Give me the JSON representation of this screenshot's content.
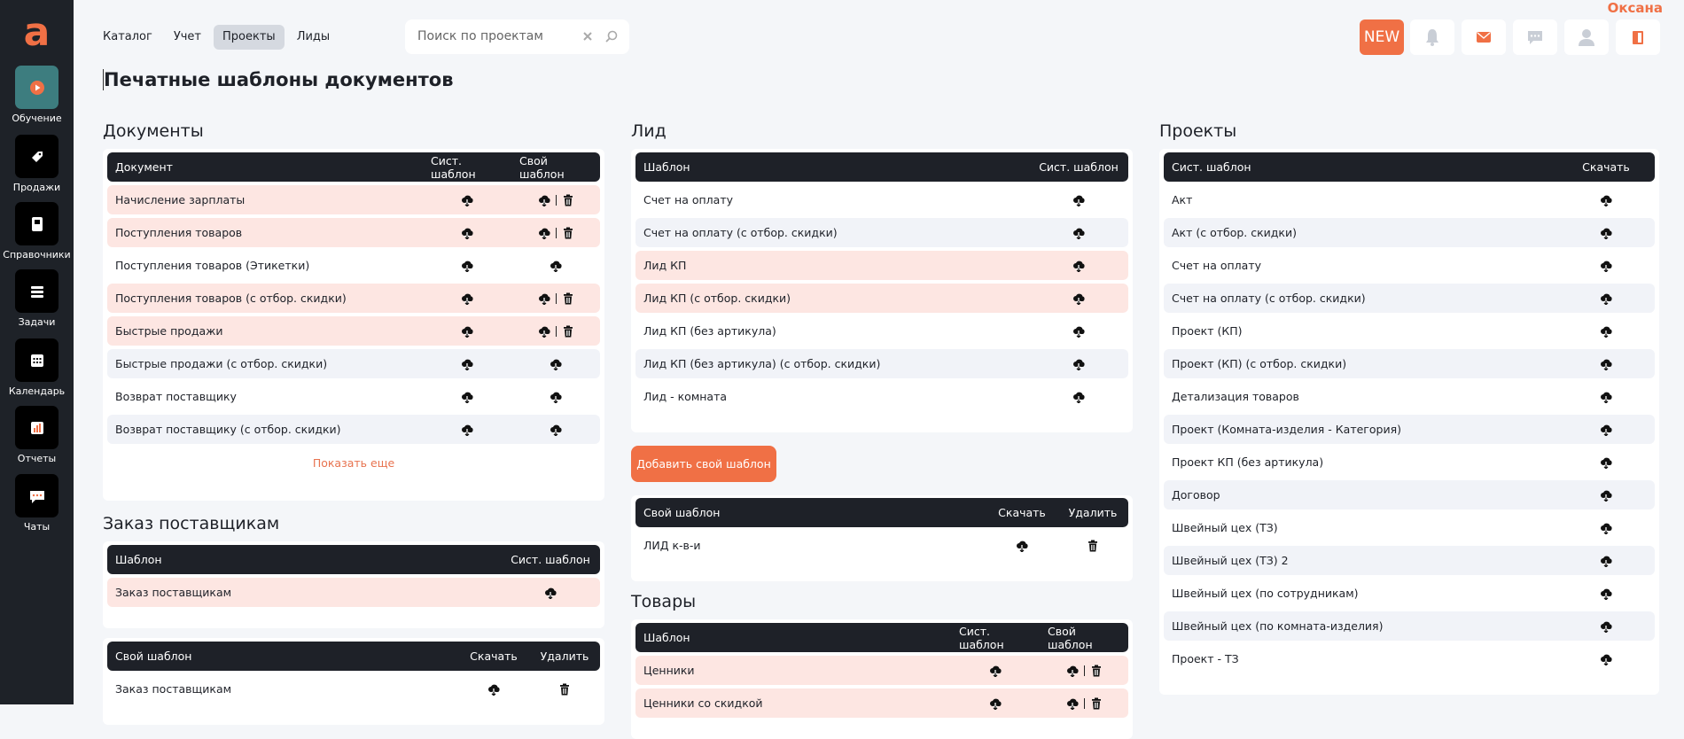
{
  "app": {
    "logo": "a",
    "user": "Оксана",
    "new_badge": "NEW",
    "nav": [
      "Каталог",
      "Учет",
      "Проекты",
      "Лиды"
    ],
    "active_nav": 2,
    "search_placeholder": "Поиск по проектам",
    "sidebar": [
      "Обучение",
      "Продажи",
      "Справочники",
      "Задачи",
      "Календарь",
      "Отчеты",
      "Чаты"
    ]
  },
  "page": {
    "title": "Печатные шаблоны документов"
  },
  "documents": {
    "title": "Документы",
    "columns": [
      "Документ",
      "Сист. шаблон",
      "Свой шаблон"
    ],
    "rows": [
      {
        "name": "Начисление зарплаты",
        "highlight": true,
        "delete": true
      },
      {
        "name": "Поступления товаров",
        "highlight": true,
        "delete": true
      },
      {
        "name": "Поступления товаров (Этикетки)",
        "highlight": false,
        "delete": false
      },
      {
        "name": "Поступления товаров (с отбор. скидки)",
        "highlight": true,
        "delete": true
      },
      {
        "name": "Быстрые продажи",
        "highlight": true,
        "delete": true
      },
      {
        "name": "Быстрые продажи (с отбор. скидки)",
        "highlight": false,
        "delete": false
      },
      {
        "name": "Возврат поставщику",
        "highlight": false,
        "delete": false
      },
      {
        "name": "Возврат поставщику (с отбор. скидки)",
        "highlight": false,
        "delete": false
      }
    ],
    "show_more": "Показать еще"
  },
  "supplier_order": {
    "title": "Заказ поставщикам",
    "columns": [
      "Шаблон",
      "Сист. шаблон"
    ],
    "rows": [
      {
        "name": "Заказ поставщикам",
        "highlight": true
      }
    ],
    "own": {
      "columns": [
        "Свой шаблон",
        "Скачать",
        "Удалить"
      ],
      "rows": [
        {
          "name": "Заказ поставщикам",
          "highlight": false
        }
      ]
    }
  },
  "lead": {
    "title": "Лид",
    "columns": [
      "Шаблон",
      "Сист. шаблон"
    ],
    "rows": [
      {
        "name": "Счет на оплату",
        "highlight": false
      },
      {
        "name": "Счет на оплату (с отбор. скидки)",
        "highlight": false
      },
      {
        "name": "Лид КП",
        "highlight": true
      },
      {
        "name": "Лид КП (с отбор. скидки)",
        "highlight": true
      },
      {
        "name": "Лид КП (без артикула)",
        "highlight": false
      },
      {
        "name": "Лид КП (без артикула) (с отбор. скидки)",
        "highlight": false
      },
      {
        "name": "Лид - комната",
        "highlight": false
      }
    ],
    "add_button": "Добавить свой шаблон",
    "own": {
      "columns": [
        "Свой шаблон",
        "Скачать",
        "Удалить"
      ],
      "rows": [
        {
          "name": "ЛИД к-в-и",
          "highlight": false
        }
      ]
    }
  },
  "goods": {
    "title": "Товары",
    "columns": [
      "Шаблон",
      "Сист. шаблон",
      "Свой шаблон"
    ],
    "rows": [
      {
        "name": "Ценники",
        "highlight": true,
        "delete": true
      },
      {
        "name": "Ценники со скидкой",
        "highlight": true,
        "delete": true
      }
    ]
  },
  "projects": {
    "title": "Проекты",
    "columns": [
      "Сист. шаблон",
      "Скачать"
    ],
    "rows": [
      {
        "name": "Акт",
        "highlight": false
      },
      {
        "name": "Акт (с отбор. скидки)",
        "highlight": false
      },
      {
        "name": "Счет на оплату",
        "highlight": false
      },
      {
        "name": "Счет на оплату (с отбор. скидки)",
        "highlight": false
      },
      {
        "name": "Проект (КП)",
        "highlight": false
      },
      {
        "name": "Проект (КП) (с отбор. скидки)",
        "highlight": false
      },
      {
        "name": "Детализация товаров",
        "highlight": false
      },
      {
        "name": "Проект (Комната-изделия - Категория)",
        "highlight": false
      },
      {
        "name": "Проект КП (без артикула)",
        "highlight": false
      },
      {
        "name": "Договор",
        "highlight": false
      },
      {
        "name": "Швейный цех (ТЗ)",
        "highlight": false
      },
      {
        "name": "Швейный цех (ТЗ) 2",
        "highlight": false
      },
      {
        "name": "Швейный цех (по сотрудникам)",
        "highlight": false
      },
      {
        "name": "Швейный цех (по комната-изделия)",
        "highlight": false
      },
      {
        "name": "Проект - ТЗ",
        "highlight": false
      }
    ]
  }
}
